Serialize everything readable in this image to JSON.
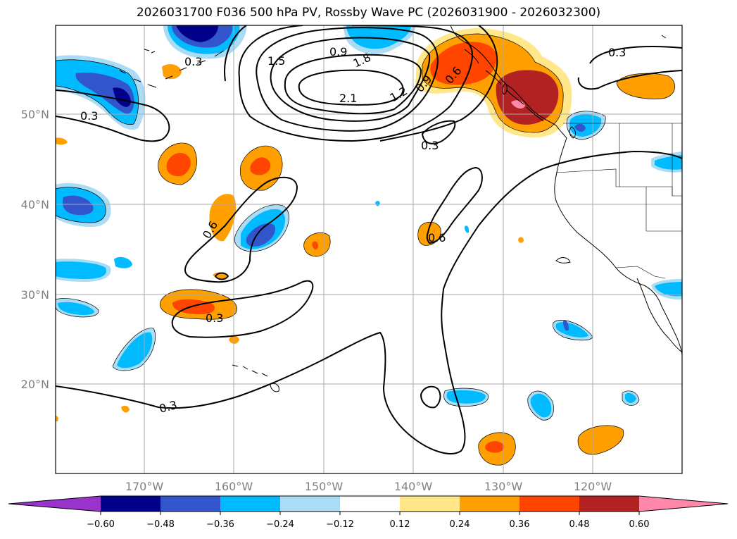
{
  "title": "2026031700 F036 500 hPa PV, Rossby Wave PC (2026031900 - 2026032300)",
  "lat_labels": [
    "50°N",
    "40°N",
    "30°N",
    "20°N"
  ],
  "lon_labels": [
    "170°W",
    "160°W",
    "150°W",
    "140°W",
    "130°W",
    "120°W"
  ],
  "contour_labels": [
    "0.3",
    "0.3",
    "0.3",
    "0.3",
    "0.3",
    "0.3",
    "0.6",
    "0.6",
    "0.6",
    "0.9",
    "0.9",
    "1.2",
    "1.5",
    "1.8",
    "2.1"
  ],
  "colorbar": {
    "ticks": [
      "−0.60",
      "−0.48",
      "−0.36",
      "−0.24",
      "−0.12",
      "0.12",
      "0.24",
      "0.36",
      "0.48",
      "0.60"
    ],
    "colors": [
      "#9933cc",
      "#00008b",
      "#3355cc",
      "#00bbff",
      "#aaddf5",
      "#ffffff",
      "#ffe78a",
      "#ffa000",
      "#ff4500",
      "#b22222",
      "#ff88aa"
    ]
  }
}
